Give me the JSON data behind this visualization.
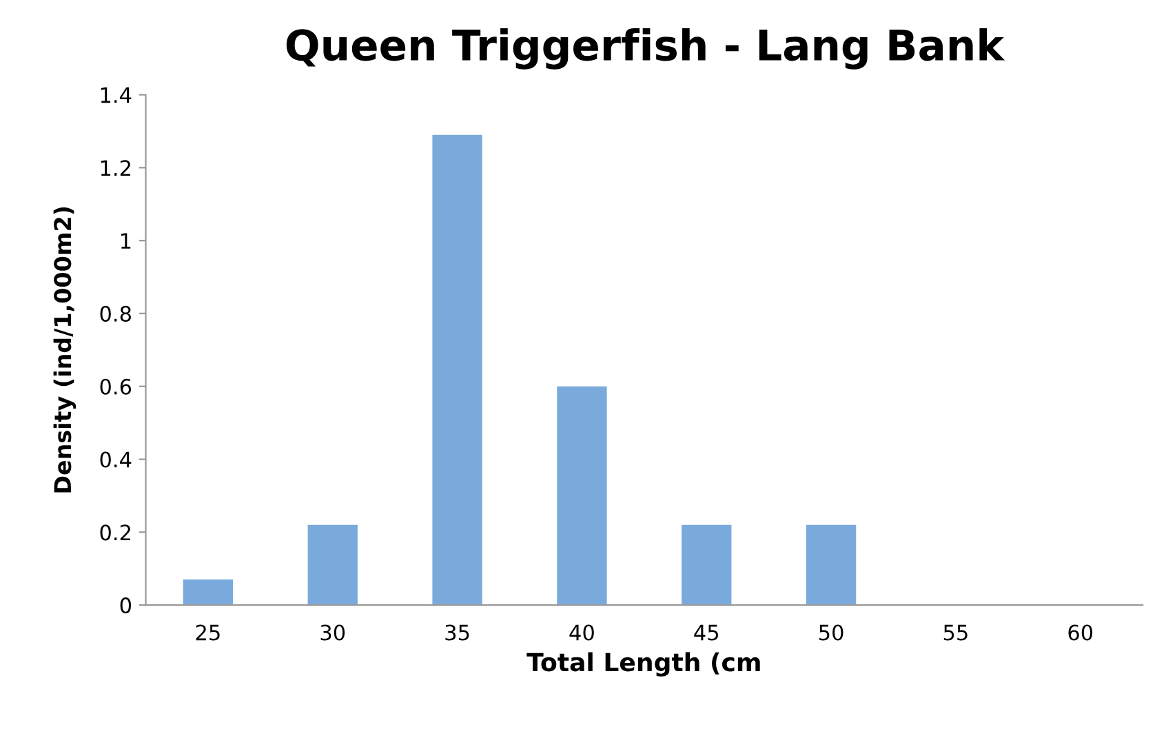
{
  "chart_data": {
    "type": "bar",
    "title": "Queen Triggerfish - Lang Bank",
    "xlabel": "Total Length (cm",
    "ylabel": "Density (ind/1,000m2)",
    "categories": [
      "25",
      "30",
      "35",
      "40",
      "45",
      "50",
      "55",
      "60"
    ],
    "values": [
      0.07,
      0.22,
      1.29,
      0.6,
      0.22,
      0.22,
      0,
      0
    ],
    "color": "#7aaadc",
    "ylim": [
      0,
      1.4
    ],
    "yticks": [
      0,
      0.2,
      0.4,
      0.6,
      0.8,
      1,
      1.2,
      1.4
    ],
    "grid": false,
    "legend": false
  }
}
